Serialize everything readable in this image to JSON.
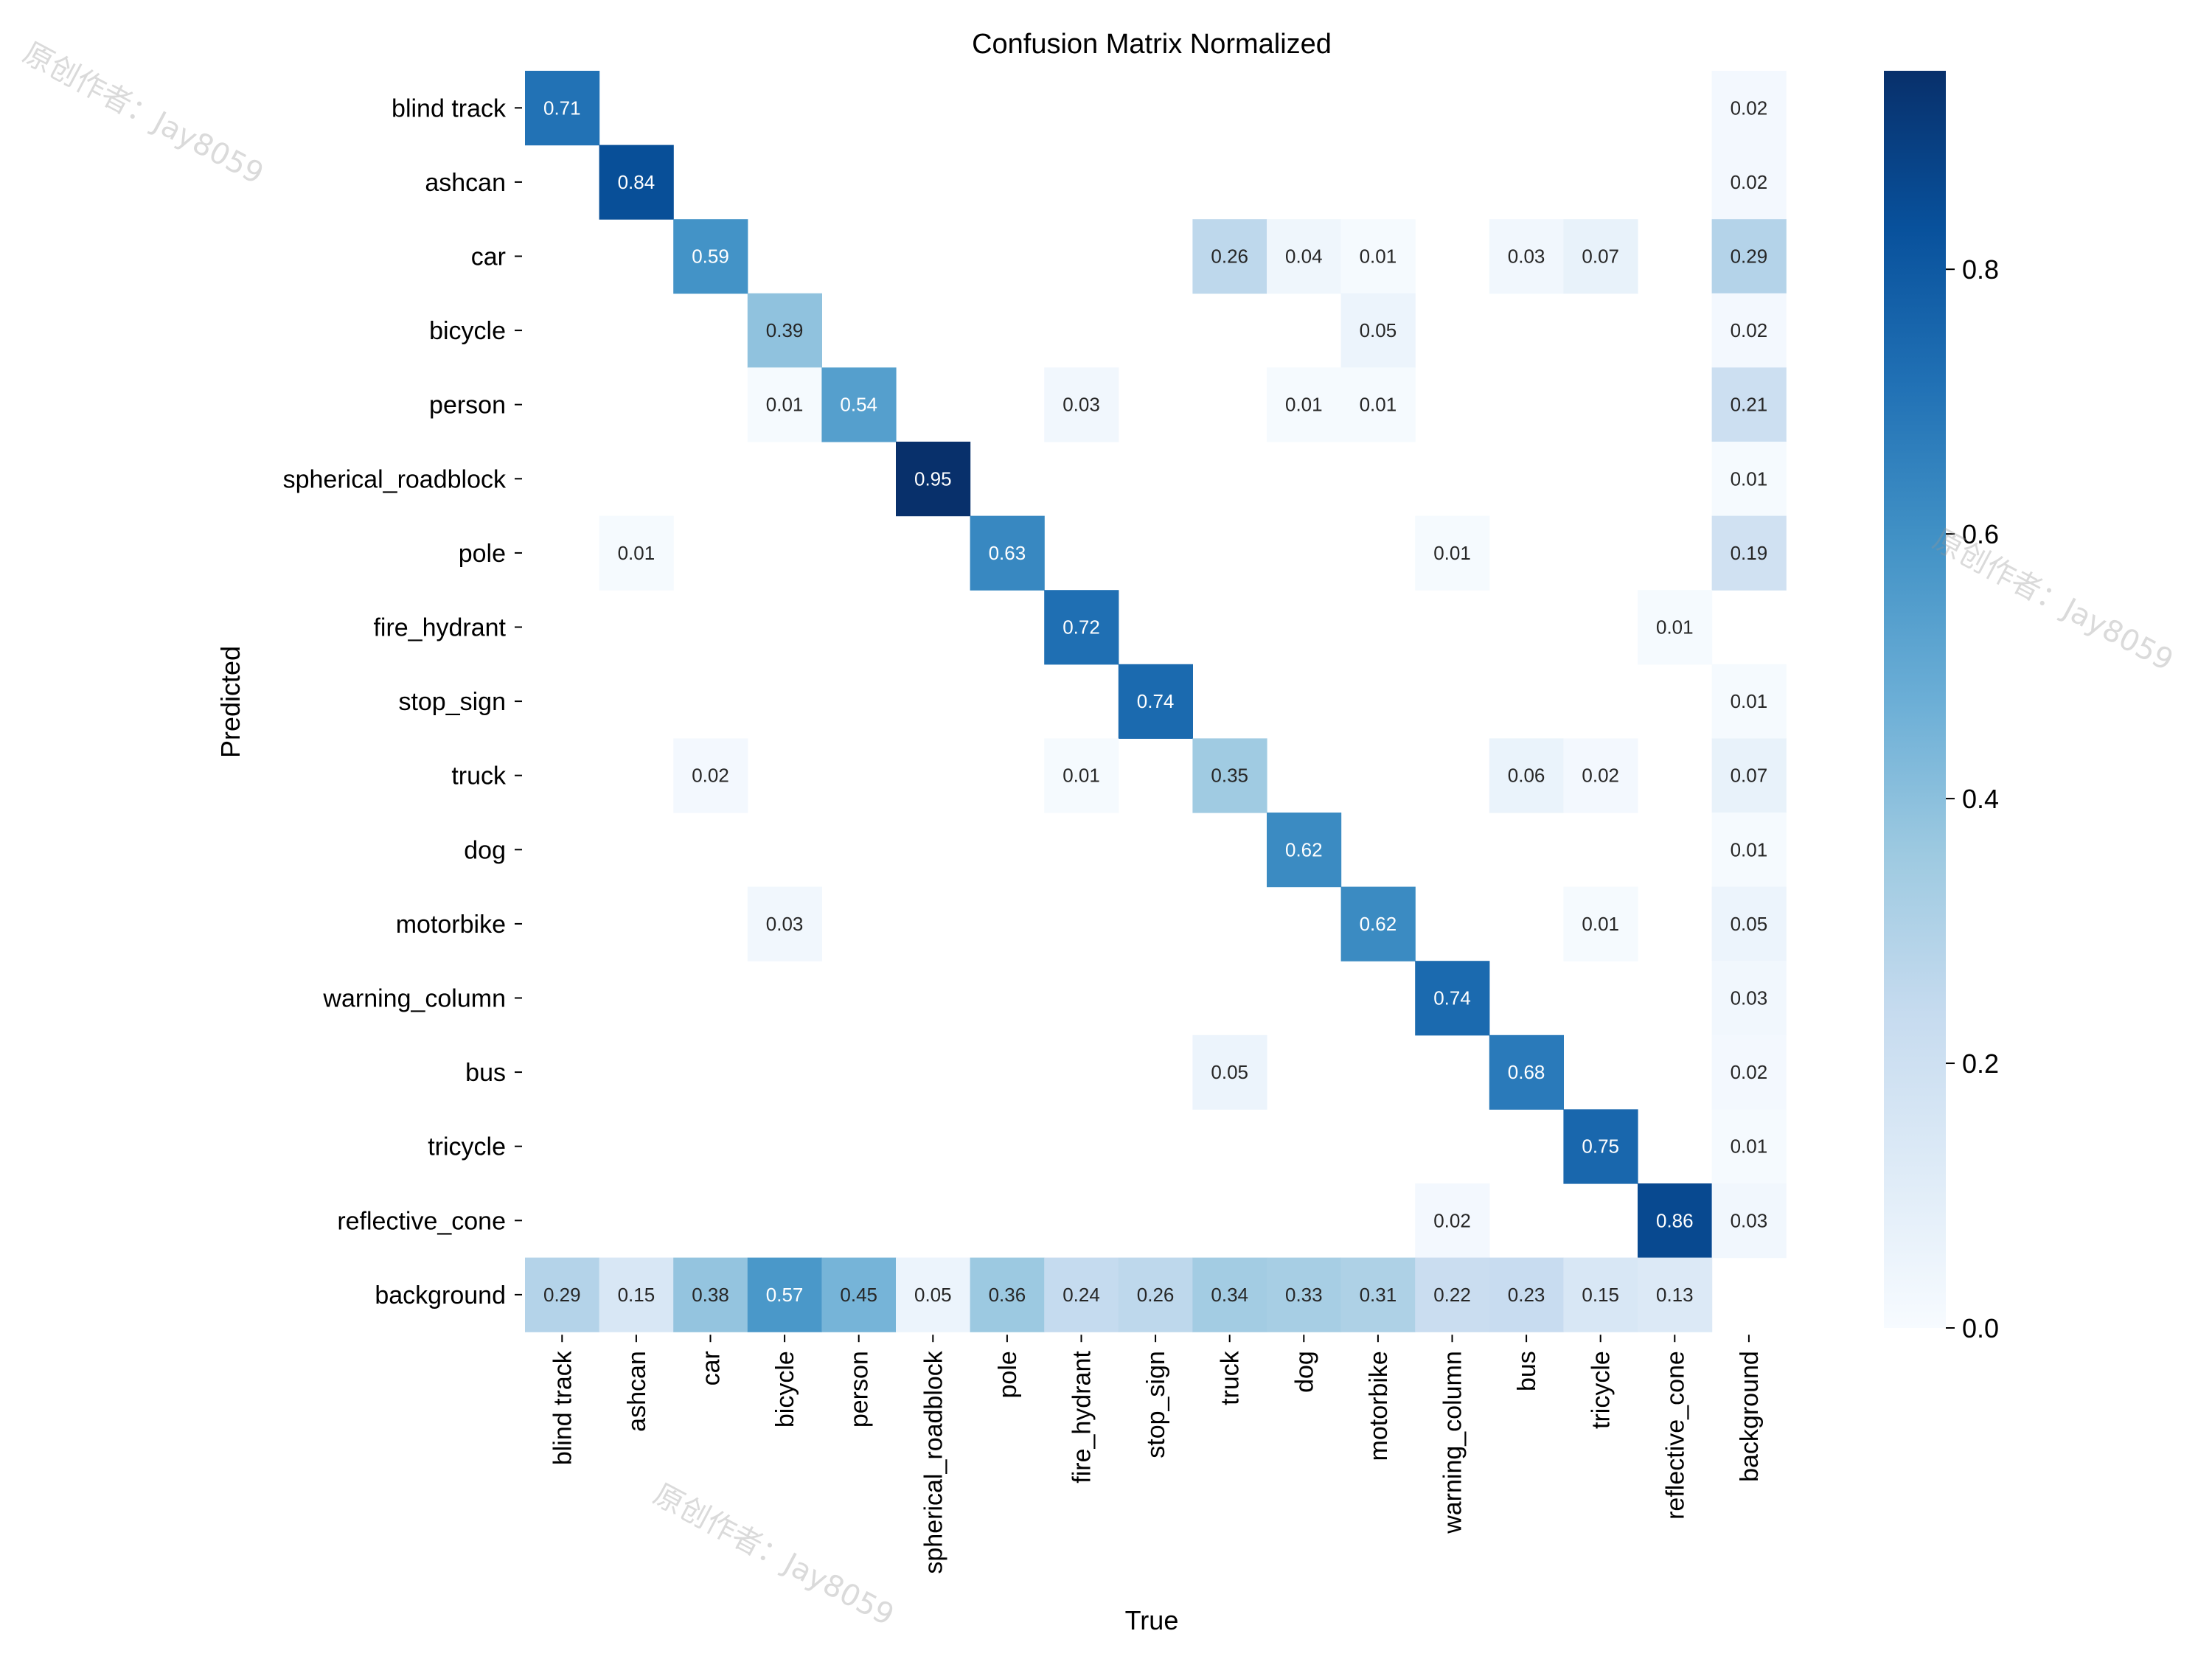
{
  "chart_data": {
    "type": "heatmap",
    "title": "Confusion Matrix Normalized",
    "xlabel": "True",
    "ylabel": "Predicted",
    "classes": [
      "blind track",
      "ashcan",
      "car",
      "bicycle",
      "person",
      "spherical_roadblock",
      "pole",
      "fire_hydrant",
      "stop_sign",
      "truck",
      "dog",
      "motorbike",
      "warning_column",
      "bus",
      "tricycle",
      "reflective_cone",
      "background"
    ],
    "matrix": [
      [
        0.71,
        null,
        null,
        null,
        null,
        null,
        null,
        null,
        null,
        null,
        null,
        null,
        null,
        null,
        null,
        null,
        0.02
      ],
      [
        null,
        0.84,
        null,
        null,
        null,
        null,
        null,
        null,
        null,
        null,
        null,
        null,
        null,
        null,
        null,
        null,
        0.02
      ],
      [
        null,
        null,
        0.59,
        null,
        null,
        null,
        null,
        null,
        null,
        0.26,
        0.04,
        0.01,
        null,
        0.03,
        0.07,
        null,
        0.29
      ],
      [
        null,
        null,
        null,
        0.39,
        null,
        null,
        null,
        null,
        null,
        null,
        null,
        0.05,
        null,
        null,
        null,
        null,
        0.02
      ],
      [
        null,
        null,
        null,
        0.01,
        0.54,
        null,
        null,
        0.03,
        null,
        null,
        0.01,
        0.01,
        null,
        null,
        null,
        null,
        0.21
      ],
      [
        null,
        null,
        null,
        null,
        null,
        0.95,
        null,
        null,
        null,
        null,
        null,
        null,
        null,
        null,
        null,
        null,
        0.01
      ],
      [
        null,
        0.01,
        null,
        null,
        null,
        null,
        0.63,
        null,
        null,
        null,
        null,
        null,
        0.01,
        null,
        null,
        null,
        0.19
      ],
      [
        null,
        null,
        null,
        null,
        null,
        null,
        null,
        0.72,
        null,
        null,
        null,
        null,
        null,
        null,
        null,
        0.01,
        null
      ],
      [
        null,
        null,
        null,
        null,
        null,
        null,
        null,
        null,
        0.74,
        null,
        null,
        null,
        null,
        null,
        null,
        null,
        0.01
      ],
      [
        null,
        null,
        0.02,
        null,
        null,
        null,
        null,
        0.01,
        null,
        0.35,
        null,
        null,
        null,
        0.06,
        0.02,
        null,
        0.07
      ],
      [
        null,
        null,
        null,
        null,
        null,
        null,
        null,
        null,
        null,
        null,
        0.62,
        null,
        null,
        null,
        null,
        null,
        0.01
      ],
      [
        null,
        null,
        null,
        0.03,
        null,
        null,
        null,
        null,
        null,
        null,
        null,
        0.62,
        null,
        null,
        0.01,
        null,
        0.05
      ],
      [
        null,
        null,
        null,
        null,
        null,
        null,
        null,
        null,
        null,
        null,
        null,
        null,
        0.74,
        null,
        null,
        null,
        0.03
      ],
      [
        null,
        null,
        null,
        null,
        null,
        null,
        null,
        null,
        null,
        0.05,
        null,
        null,
        null,
        0.68,
        null,
        null,
        0.02
      ],
      [
        null,
        null,
        null,
        null,
        null,
        null,
        null,
        null,
        null,
        null,
        null,
        null,
        null,
        null,
        0.75,
        null,
        0.01
      ],
      [
        null,
        null,
        null,
        null,
        null,
        null,
        null,
        null,
        null,
        null,
        null,
        null,
        0.02,
        null,
        null,
        0.86,
        0.03
      ],
      [
        0.29,
        0.15,
        0.38,
        0.57,
        0.45,
        0.05,
        0.36,
        0.24,
        0.26,
        0.34,
        0.33,
        0.31,
        0.22,
        0.23,
        0.15,
        0.13,
        null
      ]
    ],
    "colormap": "Blues",
    "vmin": 0.0,
    "vmax": 0.95,
    "colorbar_ticks": [
      "0.0",
      "0.2",
      "0.4",
      "0.6",
      "0.8"
    ],
    "grid": false
  },
  "watermark": "原创作者：Jay8059"
}
